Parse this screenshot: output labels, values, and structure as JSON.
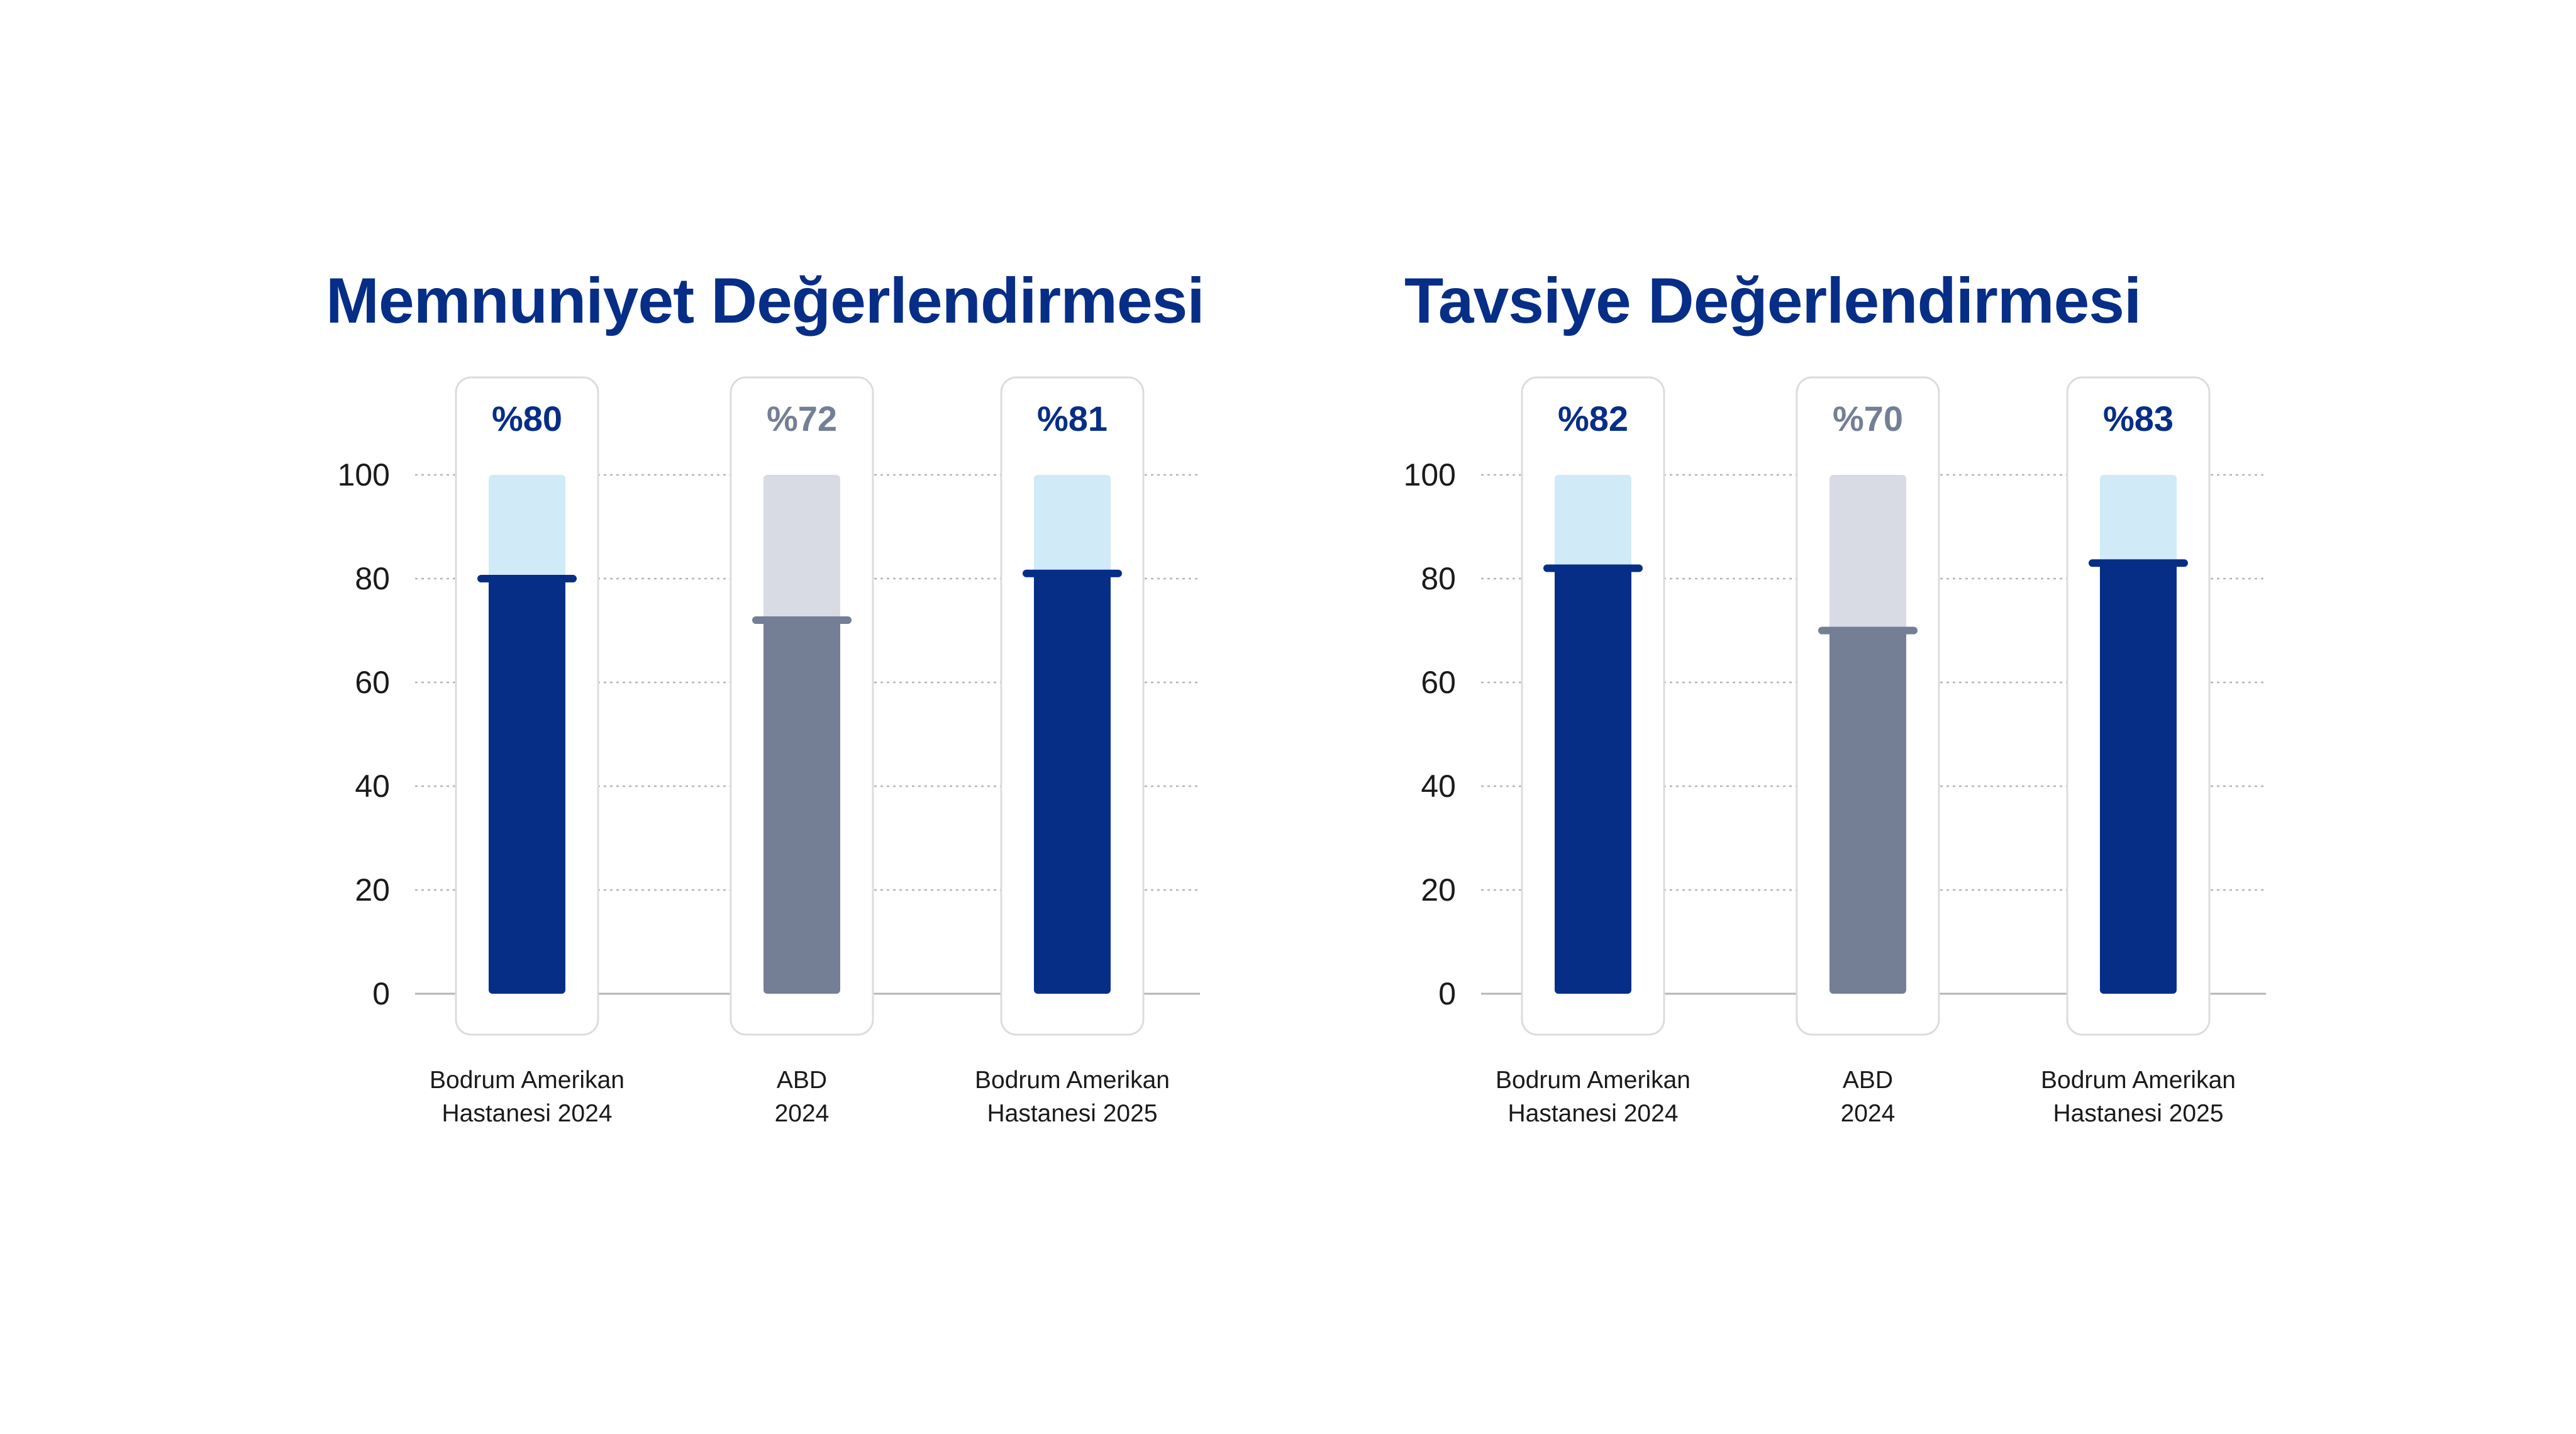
{
  "colors": {
    "primary": "#062e87",
    "primary_light": "#d0eaf7",
    "secondary": "#747f96",
    "secondary_light": "#d8dbe3",
    "title": "#062e87",
    "axis_text": "#1a1a1a",
    "grid": "#b5b5b5",
    "card_border": "#dcdce0"
  },
  "chart_data": [
    {
      "type": "bar",
      "title": "Memnuniyet Değerlendirmesi",
      "xlabel": "",
      "ylabel": "",
      "ylim": [
        0,
        100
      ],
      "yticks": [
        "0",
        "20",
        "40",
        "60",
        "80",
        "100"
      ],
      "grid": true,
      "categories": [
        {
          "line1": "Bodrum Amerikan",
          "line2": "Hastanesi 2024"
        },
        {
          "line1": "ABD",
          "line2": "2024"
        },
        {
          "line1": "Bodrum Amerikan",
          "line2": "Hastanesi 2025"
        }
      ],
      "values": [
        80,
        72,
        81
      ],
      "value_labels": [
        "%80",
        "%72",
        "%81"
      ],
      "styles": [
        "primary",
        "secondary",
        "primary"
      ]
    },
    {
      "type": "bar",
      "title": "Tavsiye Değerlendirmesi",
      "xlabel": "",
      "ylabel": "",
      "ylim": [
        0,
        100
      ],
      "yticks": [
        "0",
        "20",
        "40",
        "60",
        "80",
        "100"
      ],
      "grid": true,
      "categories": [
        {
          "line1": "Bodrum Amerikan",
          "line2": "Hastanesi 2024"
        },
        {
          "line1": "ABD",
          "line2": "2024"
        },
        {
          "line1": "Bodrum Amerikan",
          "line2": "Hastanesi 2025"
        }
      ],
      "values": [
        82,
        70,
        83
      ],
      "value_labels": [
        "%82",
        "%70",
        "%83"
      ],
      "styles": [
        "primary",
        "secondary",
        "primary"
      ]
    }
  ]
}
